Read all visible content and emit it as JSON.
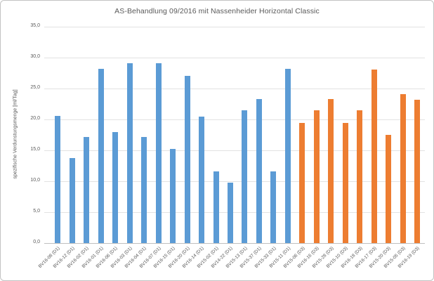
{
  "chart_data": {
    "type": "bar",
    "title": "AS-Behandlung 09/2016 mit Nassenheider Horizontal Classic",
    "xlabel": "",
    "ylabel": "spezifische Verdunstungsmenge [ml/Tag]",
    "ylim": [
      0,
      35
    ],
    "ytick_step": 5,
    "ytick_labels": [
      "0,0",
      "5,0",
      "10,0",
      "15,0",
      "20,0",
      "25,0",
      "30,0",
      "35,0"
    ],
    "grid": true,
    "legend": "none",
    "decimal_separator": "comma",
    "categories": [
      "BV16-08 (D1)",
      "BV16-12 (D1)",
      "BV16-02 (D1)",
      "BV16-01 (D1)",
      "BV16-06 (D1)",
      "BV16-03 (D1)",
      "BV16-04 (D1)",
      "BV16-07 (D1)",
      "BV16-15 (D1)",
      "BV16-20 (D1)",
      "BV16-14 (D1)",
      "BV15-02 (D1)",
      "BV14-22 (D1)",
      "BV15-13 (D1)",
      "BV15-37 (D1)",
      "BV15-33 (D1)",
      "BV15-11 (D1)",
      "BV15-06 (D3)",
      "BV16-16 (D3)",
      "BV15-28 (D3)",
      "BV15-10 (D3)",
      "BV16-18 (D3)",
      "BV16-17 (D3)",
      "BV15-20 (D3)",
      "BV15-05 (D3)",
      "BV16-19 (D3)"
    ],
    "values": [
      20.5,
      13.7,
      17.1,
      28.1,
      17.9,
      29.0,
      17.1,
      29.0,
      15.2,
      27.0,
      20.4,
      11.5,
      9.7,
      21.4,
      23.2,
      11.6,
      28.1,
      19.4,
      21.4,
      23.2,
      19.4,
      21.4,
      28.0,
      17.5,
      24.1,
      23.1
    ],
    "groups": [
      "D1",
      "D1",
      "D1",
      "D1",
      "D1",
      "D1",
      "D1",
      "D1",
      "D1",
      "D1",
      "D1",
      "D1",
      "D1",
      "D1",
      "D1",
      "D1",
      "D1",
      "D3",
      "D3",
      "D3",
      "D3",
      "D3",
      "D3",
      "D3",
      "D3",
      "D3"
    ],
    "group_colors": {
      "D1": "#5B9BD5",
      "D3": "#ED7D31"
    }
  },
  "colors": {
    "grid": "#e2e2e2",
    "axis_line": "#bfbfbf",
    "text": "#595959",
    "frame_border": "#c2c2c2"
  }
}
